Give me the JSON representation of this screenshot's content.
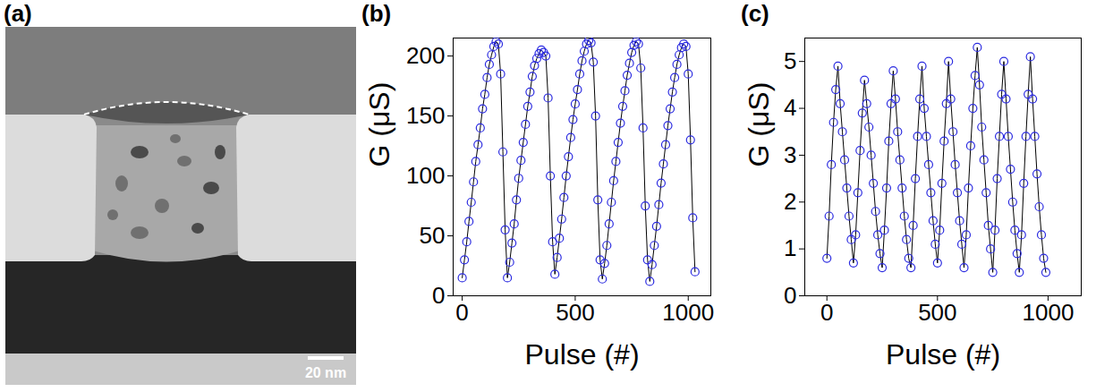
{
  "figure_a": {
    "panel_label": "(a)",
    "scale_bar": "20 nm"
  },
  "chart_data": [
    {
      "panel_label": "(b)",
      "type": "scatter",
      "x_label": "Pulse (#)",
      "y_label": "G (μS)",
      "marker": "circle",
      "line_style": "solid",
      "color": "#2a2ae0",
      "xlim": [
        -40,
        1100
      ],
      "xticks": [
        0,
        500,
        1000
      ],
      "ylim": [
        0,
        215
      ],
      "yticks": [
        0,
        50,
        100,
        150,
        200
      ],
      "x": [
        0,
        10,
        20,
        30,
        40,
        50,
        60,
        70,
        80,
        90,
        100,
        110,
        120,
        130,
        140,
        150,
        160,
        170,
        180,
        190,
        200,
        210,
        220,
        230,
        240,
        250,
        260,
        270,
        280,
        290,
        300,
        310,
        320,
        330,
        340,
        350,
        360,
        370,
        380,
        390,
        400,
        410,
        420,
        430,
        440,
        450,
        460,
        470,
        480,
        490,
        500,
        510,
        520,
        530,
        540,
        550,
        560,
        570,
        580,
        590,
        600,
        610,
        620,
        630,
        640,
        650,
        660,
        670,
        680,
        690,
        700,
        710,
        720,
        730,
        740,
        750,
        760,
        770,
        780,
        790,
        800,
        810,
        820,
        830,
        840,
        850,
        860,
        870,
        880,
        890,
        900,
        910,
        920,
        930,
        940,
        950,
        960,
        970,
        980,
        990,
        1000,
        1010,
        1020,
        1030
      ],
      "values": [
        15,
        30,
        45,
        62,
        78,
        95,
        112,
        126,
        140,
        156,
        168,
        182,
        193,
        201,
        208,
        212,
        210,
        185,
        120,
        55,
        15,
        28,
        44,
        60,
        80,
        98,
        113,
        128,
        143,
        158,
        170,
        183,
        192,
        198,
        202,
        205,
        203,
        200,
        165,
        100,
        45,
        18,
        32,
        48,
        64,
        82,
        100,
        116,
        132,
        147,
        160,
        172,
        185,
        196,
        204,
        210,
        213,
        211,
        195,
        150,
        80,
        30,
        14,
        27,
        42,
        60,
        78,
        96,
        112,
        128,
        144,
        158,
        171,
        184,
        194,
        203,
        209,
        212,
        210,
        190,
        140,
        75,
        30,
        12,
        26,
        42,
        58,
        76,
        94,
        110,
        126,
        142,
        156,
        170,
        182,
        193,
        201,
        207,
        210,
        208,
        185,
        130,
        65,
        20
      ]
    },
    {
      "panel_label": "(c)",
      "type": "scatter",
      "x_label": "Pulse (#)",
      "y_label": "G (μS)",
      "marker": "circle",
      "line_style": "solid",
      "color": "#2a2ae0",
      "xlim": [
        -100,
        1150
      ],
      "xticks": [
        0,
        500,
        1000
      ],
      "ylim": [
        0,
        5.5
      ],
      "yticks": [
        0,
        1,
        2,
        3,
        4,
        5
      ],
      "x": [
        0,
        10,
        20,
        30,
        40,
        50,
        60,
        70,
        80,
        90,
        100,
        110,
        120,
        130,
        140,
        150,
        160,
        170,
        180,
        190,
        200,
        210,
        220,
        230,
        240,
        250,
        260,
        270,
        280,
        290,
        300,
        310,
        320,
        330,
        340,
        350,
        360,
        370,
        380,
        390,
        400,
        410,
        420,
        430,
        440,
        450,
        460,
        470,
        480,
        490,
        500,
        510,
        520,
        530,
        540,
        550,
        560,
        570,
        580,
        590,
        600,
        610,
        620,
        630,
        640,
        650,
        660,
        670,
        680,
        690,
        700,
        710,
        720,
        730,
        740,
        750,
        760,
        770,
        780,
        790,
        800,
        810,
        820,
        830,
        840,
        850,
        860,
        870,
        880,
        890,
        900,
        910,
        920,
        930,
        940,
        950,
        960,
        970,
        980,
        990
      ],
      "values": [
        0.8,
        1.7,
        2.8,
        3.7,
        4.4,
        4.9,
        4.1,
        3.5,
        2.9,
        2.3,
        1.7,
        1.2,
        0.7,
        1.3,
        2.2,
        3.1,
        3.9,
        4.6,
        4.1,
        3.6,
        3.0,
        2.4,
        1.8,
        1.3,
        0.9,
        0.6,
        1.4,
        2.3,
        3.3,
        4.1,
        4.8,
        4.2,
        3.5,
        2.9,
        2.3,
        1.7,
        1.2,
        0.8,
        0.6,
        1.5,
        2.5,
        3.4,
        4.2,
        4.9,
        4.0,
        3.4,
        2.8,
        2.2,
        1.6,
        1.1,
        0.7,
        1.4,
        2.4,
        3.3,
        4.1,
        5.0,
        4.2,
        3.5,
        2.8,
        2.2,
        1.6,
        1.1,
        0.6,
        1.3,
        2.3,
        3.2,
        4.0,
        4.7,
        5.3,
        4.5,
        3.6,
        2.9,
        2.2,
        1.5,
        1.0,
        0.5,
        1.4,
        2.5,
        3.4,
        4.3,
        5.0,
        4.2,
        3.4,
        2.7,
        2.0,
        1.4,
        0.9,
        0.5,
        1.3,
        2.4,
        3.4,
        4.3,
        5.1,
        4.2,
        3.4,
        2.6,
        1.9,
        1.3,
        0.8,
        0.5
      ]
    }
  ]
}
